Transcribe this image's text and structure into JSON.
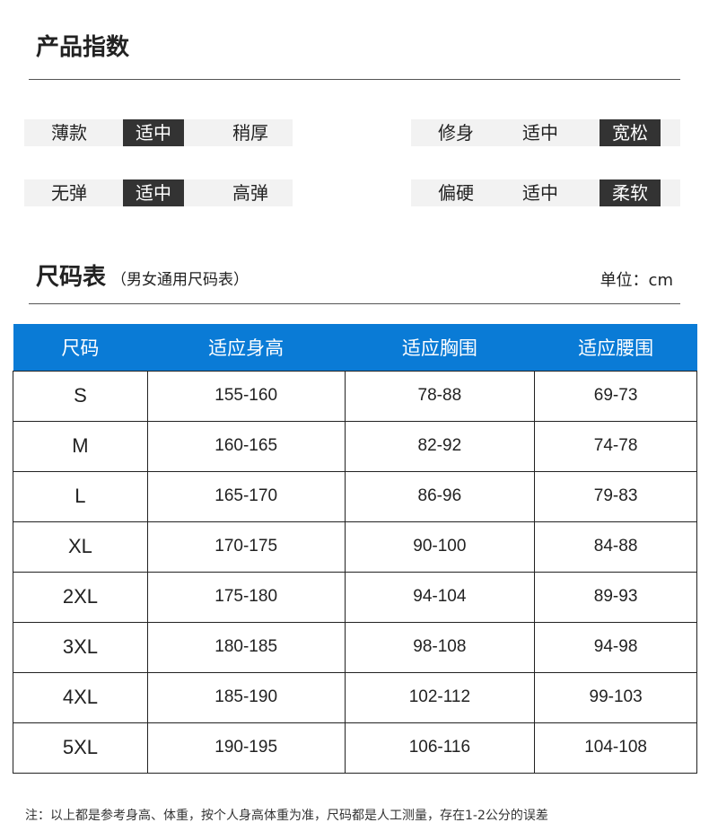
{
  "title": "产品指数",
  "attributes": [
    {
      "options": [
        "薄款",
        "适中",
        "稍厚"
      ],
      "selected": 1
    },
    {
      "options": [
        "修身",
        "适中",
        "宽松"
      ],
      "selected": 2
    },
    {
      "options": [
        "无弹",
        "适中",
        "高弹"
      ],
      "selected": 1
    },
    {
      "options": [
        "偏硬",
        "适中",
        "柔软"
      ],
      "selected": 2
    }
  ],
  "size_chart": {
    "title": "尺码表",
    "subtitle": "（男女通用尺码表）",
    "unit": "单位：cm",
    "headers": [
      "尺码",
      "适应身高",
      "适应胸围",
      "适应腰围"
    ],
    "rows": [
      [
        "S",
        "155-160",
        "78-88",
        "69-73"
      ],
      [
        "M",
        "160-165",
        "82-92",
        "74-78"
      ],
      [
        "L",
        "165-170",
        "86-96",
        "79-83"
      ],
      [
        "XL",
        "170-175",
        "90-100",
        "84-88"
      ],
      [
        "2XL",
        "175-180",
        "94-104",
        "89-93"
      ],
      [
        "3XL",
        "180-185",
        "98-108",
        "94-98"
      ],
      [
        "4XL",
        "185-190",
        "102-112",
        "99-103"
      ],
      [
        "5XL",
        "190-195",
        "106-116",
        "104-108"
      ]
    ]
  },
  "note": "注：以上都是参考身高、体重，按个人身高体重为准，尺码都是人工测量，存在1-2公分的误差",
  "colors": {
    "header": "#0a7bd6",
    "selected": "#333333"
  }
}
